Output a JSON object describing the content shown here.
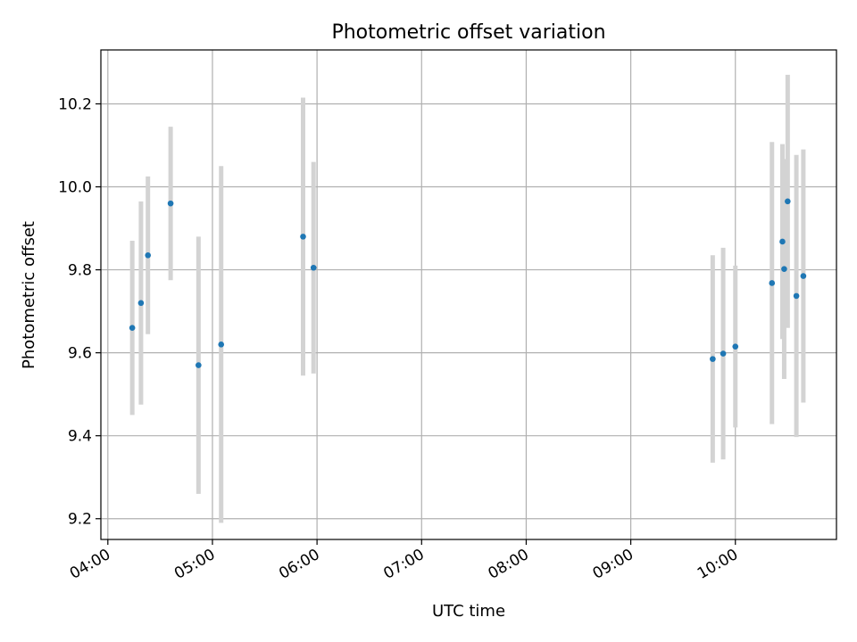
{
  "chart_data": {
    "type": "scatter",
    "title": "Photometric offset variation",
    "xlabel": "UTC time",
    "ylabel": "Photometric offset",
    "x_unit": "UTC time (hh:mm)",
    "xlim": [
      "03:56",
      "10:58"
    ],
    "ylim": [
      9.15,
      10.33
    ],
    "x_ticks": [
      "04:00",
      "05:00",
      "06:00",
      "07:00",
      "08:00",
      "09:00",
      "10:00"
    ],
    "y_ticks": [
      9.2,
      9.4,
      9.6,
      9.8,
      10.0,
      10.2
    ],
    "y_tick_labels": [
      "9.2",
      "9.4",
      "9.6",
      "9.8",
      "10.0",
      "10.2"
    ],
    "grid": true,
    "marker_color": "#1f77b4",
    "errorbar_color": "#d3d3d3",
    "series": [
      {
        "points": [
          {
            "x": "04:14",
            "y": 9.66,
            "err": 0.21
          },
          {
            "x": "04:19",
            "y": 9.72,
            "err": 0.245
          },
          {
            "x": "04:23",
            "y": 9.835,
            "err": 0.19
          },
          {
            "x": "04:36",
            "y": 9.96,
            "err": 0.185
          },
          {
            "x": "04:52",
            "y": 9.57,
            "err": 0.31
          },
          {
            "x": "05:05",
            "y": 9.62,
            "err": 0.43
          },
          {
            "x": "05:52",
            "y": 9.88,
            "err": 0.335
          },
          {
            "x": "05:58",
            "y": 9.805,
            "err": 0.255
          },
          {
            "x": "09:47",
            "y": 9.585,
            "err": 0.25
          },
          {
            "x": "09:53",
            "y": 9.598,
            "err": 0.255
          },
          {
            "x": "10:00",
            "y": 9.615,
            "err": 0.195
          },
          {
            "x": "10:21",
            "y": 9.768,
            "err": 0.34
          },
          {
            "x": "10:27",
            "y": 9.868,
            "err": 0.235
          },
          {
            "x": "10:28",
            "y": 9.802,
            "err": 0.265
          },
          {
            "x": "10:30",
            "y": 9.965,
            "err": 0.305
          },
          {
            "x": "10:35",
            "y": 9.737,
            "err": 0.34
          },
          {
            "x": "10:39",
            "y": 9.785,
            "err": 0.305
          }
        ]
      }
    ]
  }
}
